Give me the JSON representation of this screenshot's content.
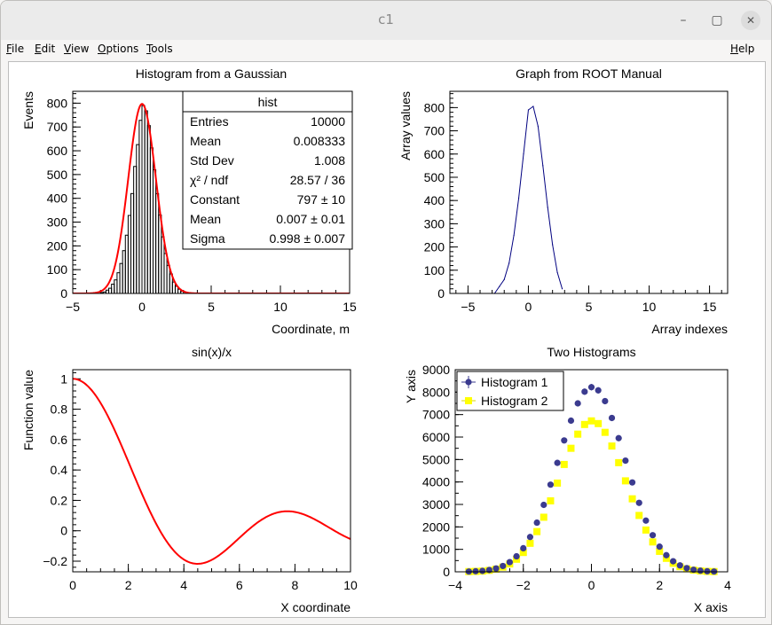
{
  "window": {
    "title": "c1",
    "minimize_glyph": "–",
    "maximize_glyph": "▢",
    "close_glyph": "✕"
  },
  "menu": {
    "file": "File",
    "edit": "Edit",
    "view": "View",
    "options": "Options",
    "tools": "Tools",
    "help": "Help"
  },
  "chart_data": [
    {
      "type": "bar",
      "title": "Histogram from a Gaussian",
      "xlabel": "Coordinate, m",
      "ylabel": "Events",
      "xlim": [
        -5,
        15
      ],
      "ylim": [
        0,
        850
      ],
      "xticks": [
        -5,
        0,
        5,
        10,
        15
      ],
      "yticks": [
        0,
        100,
        200,
        300,
        400,
        500,
        600,
        700,
        800
      ],
      "bin_width": 0.2,
      "bins_x": [
        -3.0,
        -2.8,
        -2.6,
        -2.4,
        -2.2,
        -2.0,
        -1.8,
        -1.6,
        -1.4,
        -1.2,
        -1.0,
        -0.8,
        -0.6,
        -0.4,
        -0.2,
        0.0,
        0.2,
        0.4,
        0.6,
        0.8,
        1.0,
        1.2,
        1.4,
        1.6,
        1.8,
        2.0,
        2.2,
        2.4,
        2.6,
        2.8
      ],
      "bins_y": [
        4,
        6,
        14,
        22,
        39,
        57,
        87,
        126,
        180,
        245,
        328,
        420,
        534,
        626,
        728,
        790,
        768,
        706,
        612,
        520,
        420,
        330,
        238,
        168,
        118,
        82,
        48,
        30,
        18,
        9
      ],
      "fit": {
        "function": "gaus",
        "constant": 797,
        "mean": 0.007,
        "sigma": 0.998,
        "color": "#ff0000"
      },
      "line_color": "#000000",
      "stats": {
        "name": "hist",
        "rows": [
          {
            "label": "Entries",
            "value": "10000"
          },
          {
            "label": "Mean",
            "value": "0.008333"
          },
          {
            "label": "Std Dev",
            "value": "1.008"
          },
          {
            "label": "χ² / ndf",
            "value": "28.57 / 36"
          },
          {
            "label": "Constant",
            "value": "797 ± 10"
          },
          {
            "label": "Mean",
            "value": "0.007 ± 0.01"
          },
          {
            "label": "Sigma",
            "value": "0.998 ± 0.007"
          }
        ]
      }
    },
    {
      "type": "line",
      "title": "Graph from ROOT Manual",
      "xlabel": "Array indexes",
      "ylabel": "Array values",
      "xlim": [
        -6.5,
        16.5
      ],
      "ylim": [
        0,
        870
      ],
      "xticks": [
        -5,
        0,
        5,
        10,
        15
      ],
      "yticks": [
        0,
        100,
        200,
        300,
        400,
        500,
        600,
        700,
        800
      ],
      "x": [
        -2.8,
        -2.4,
        -2.0,
        -1.6,
        -1.2,
        -0.8,
        -0.4,
        0.0,
        0.4,
        0.8,
        1.2,
        1.6,
        2.0,
        2.4,
        2.8
      ],
      "y": [
        0,
        30,
        60,
        130,
        250,
        410,
        600,
        790,
        805,
        720,
        550,
        370,
        210,
        90,
        20
      ],
      "color": "#000080"
    },
    {
      "type": "line",
      "title": "sin(x)/x",
      "xlabel": "X coordinate",
      "ylabel": "Function value",
      "xlim": [
        0,
        10
      ],
      "ylim": [
        -0.27,
        1.06
      ],
      "xticks": [
        0,
        2,
        4,
        6,
        8,
        10
      ],
      "yticks": [
        -0.2,
        0,
        0.2,
        0.4,
        0.6,
        0.8,
        1
      ],
      "function": "sin(x)/x",
      "color": "#ff0000"
    },
    {
      "type": "scatter",
      "title": "Two Histograms",
      "xlabel": "X axis",
      "ylabel": "Y axis",
      "xlim": [
        -4,
        4
      ],
      "ylim": [
        0,
        9000
      ],
      "xticks": [
        -4,
        -2,
        0,
        2,
        4
      ],
      "yticks": [
        0,
        1000,
        2000,
        3000,
        4000,
        5000,
        6000,
        7000,
        8000,
        9000
      ],
      "x": [
        -3.6,
        -3.4,
        -3.2,
        -3.0,
        -2.8,
        -2.6,
        -2.4,
        -2.2,
        -2.0,
        -1.8,
        -1.6,
        -1.4,
        -1.2,
        -1.0,
        -0.8,
        -0.6,
        -0.4,
        -0.2,
        0.0,
        0.2,
        0.4,
        0.6,
        0.8,
        1.0,
        1.2,
        1.4,
        1.6,
        1.8,
        2.0,
        2.2,
        2.4,
        2.6,
        2.8,
        3.0,
        3.2,
        3.4,
        3.6
      ],
      "series": [
        {
          "name": "Histogram 1",
          "color": "#3b3b8f",
          "marker": "circle",
          "values": [
            12,
            25,
            40,
            80,
            150,
            260,
            430,
            690,
            1050,
            1550,
            2190,
            2980,
            3880,
            4850,
            5850,
            6730,
            7500,
            8020,
            8220,
            8080,
            7600,
            6850,
            5950,
            4950,
            3980,
            3070,
            2280,
            1630,
            1120,
            740,
            470,
            285,
            165,
            92,
            48,
            24,
            12
          ]
        },
        {
          "name": "Histogram 2",
          "color": "#ffff00",
          "marker": "square",
          "values": [
            10,
            20,
            32,
            65,
            120,
            210,
            350,
            560,
            860,
            1270,
            1790,
            2430,
            3160,
            3950,
            4780,
            5500,
            6130,
            6560,
            6720,
            6600,
            6210,
            5600,
            4860,
            4050,
            3250,
            2510,
            1860,
            1330,
            910,
            600,
            380,
            230,
            135,
            75,
            39,
            19,
            10
          ]
        }
      ],
      "legend_placement": "top-left"
    }
  ]
}
